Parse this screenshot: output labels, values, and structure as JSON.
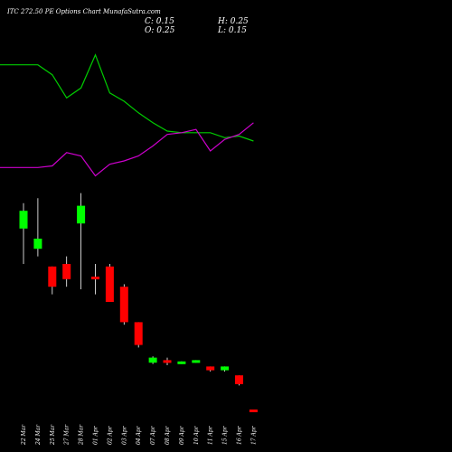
{
  "header": {
    "title": "ITC 272.50 PE Options Chart MunafaSutra.com",
    "close": "C: 0.15",
    "open": "O: 0.25",
    "high": "H: 0.25",
    "low": "L: 0.15"
  },
  "colors": {
    "background": "#000000",
    "up": "#00ff00",
    "down": "#ff0000",
    "green_line": "#00cc00",
    "purple_line": "#cc00cc",
    "wick": "#ffffff"
  },
  "chart_data": {
    "type": "candlestick",
    "title": "ITC 272.50 PE Options Chart MunafaSutra.com",
    "x": [
      "22 Mar",
      "24 Mar",
      "25 Mar",
      "27 Mar",
      "28 Mar",
      "01 Apr",
      "02 Apr",
      "03 Apr",
      "04 Apr",
      "07 Apr",
      "08 Apr",
      "09 Apr",
      "10 Apr",
      "11 Apr",
      "15 Apr",
      "16 Apr",
      "17 Apr"
    ],
    "candles": [
      {
        "open": 7.4,
        "high": 8.4,
        "low": 6.0,
        "close": 8.1
      },
      {
        "open": 6.6,
        "high": 8.6,
        "low": 6.3,
        "close": 7.0
      },
      {
        "open": 5.9,
        "high": 5.9,
        "low": 4.8,
        "close": 5.1
      },
      {
        "open": 6.0,
        "high": 6.3,
        "low": 5.1,
        "close": 5.4
      },
      {
        "open": 7.6,
        "high": 8.8,
        "low": 5.0,
        "close": 8.3
      },
      {
        "open": 5.5,
        "high": 6.0,
        "low": 4.8,
        "close": 5.4
      },
      {
        "open": 5.9,
        "high": 6.0,
        "low": 4.5,
        "close": 4.5
      },
      {
        "open": 5.1,
        "high": 5.2,
        "low": 3.6,
        "close": 3.7
      },
      {
        "open": 3.7,
        "high": 3.7,
        "low": 2.7,
        "close": 2.8
      },
      {
        "open": 2.1,
        "high": 2.35,
        "low": 2.05,
        "close": 2.3
      },
      {
        "open": 2.2,
        "high": 2.3,
        "low": 2.0,
        "close": 2.1
      },
      {
        "open": 2.05,
        "high": 2.15,
        "low": 2.05,
        "close": 2.15
      },
      {
        "open": 2.1,
        "high": 2.2,
        "low": 2.1,
        "close": 2.2
      },
      {
        "open": 1.95,
        "high": 1.95,
        "low": 1.75,
        "close": 1.8
      },
      {
        "open": 1.8,
        "high": 1.95,
        "low": 1.75,
        "close": 1.95
      },
      {
        "open": 1.6,
        "high": 1.6,
        "low": 1.2,
        "close": 1.25
      },
      {
        "open": 0.25,
        "high": 0.25,
        "low": 0.15,
        "close": 0.15
      }
    ],
    "series": [
      {
        "values": [
          100,
          100,
          94,
          80,
          86,
          106,
          83,
          78,
          71,
          65,
          60,
          59,
          59,
          59,
          56,
          57,
          54
        ]
      },
      {
        "values": [
          38,
          38,
          39,
          47,
          45,
          33,
          40,
          42,
          45,
          51,
          58,
          59,
          61,
          48,
          55,
          58,
          65
        ]
      }
    ],
    "line_range": [
      0,
      120
    ],
    "price_range": [
      0,
      10
    ]
  }
}
